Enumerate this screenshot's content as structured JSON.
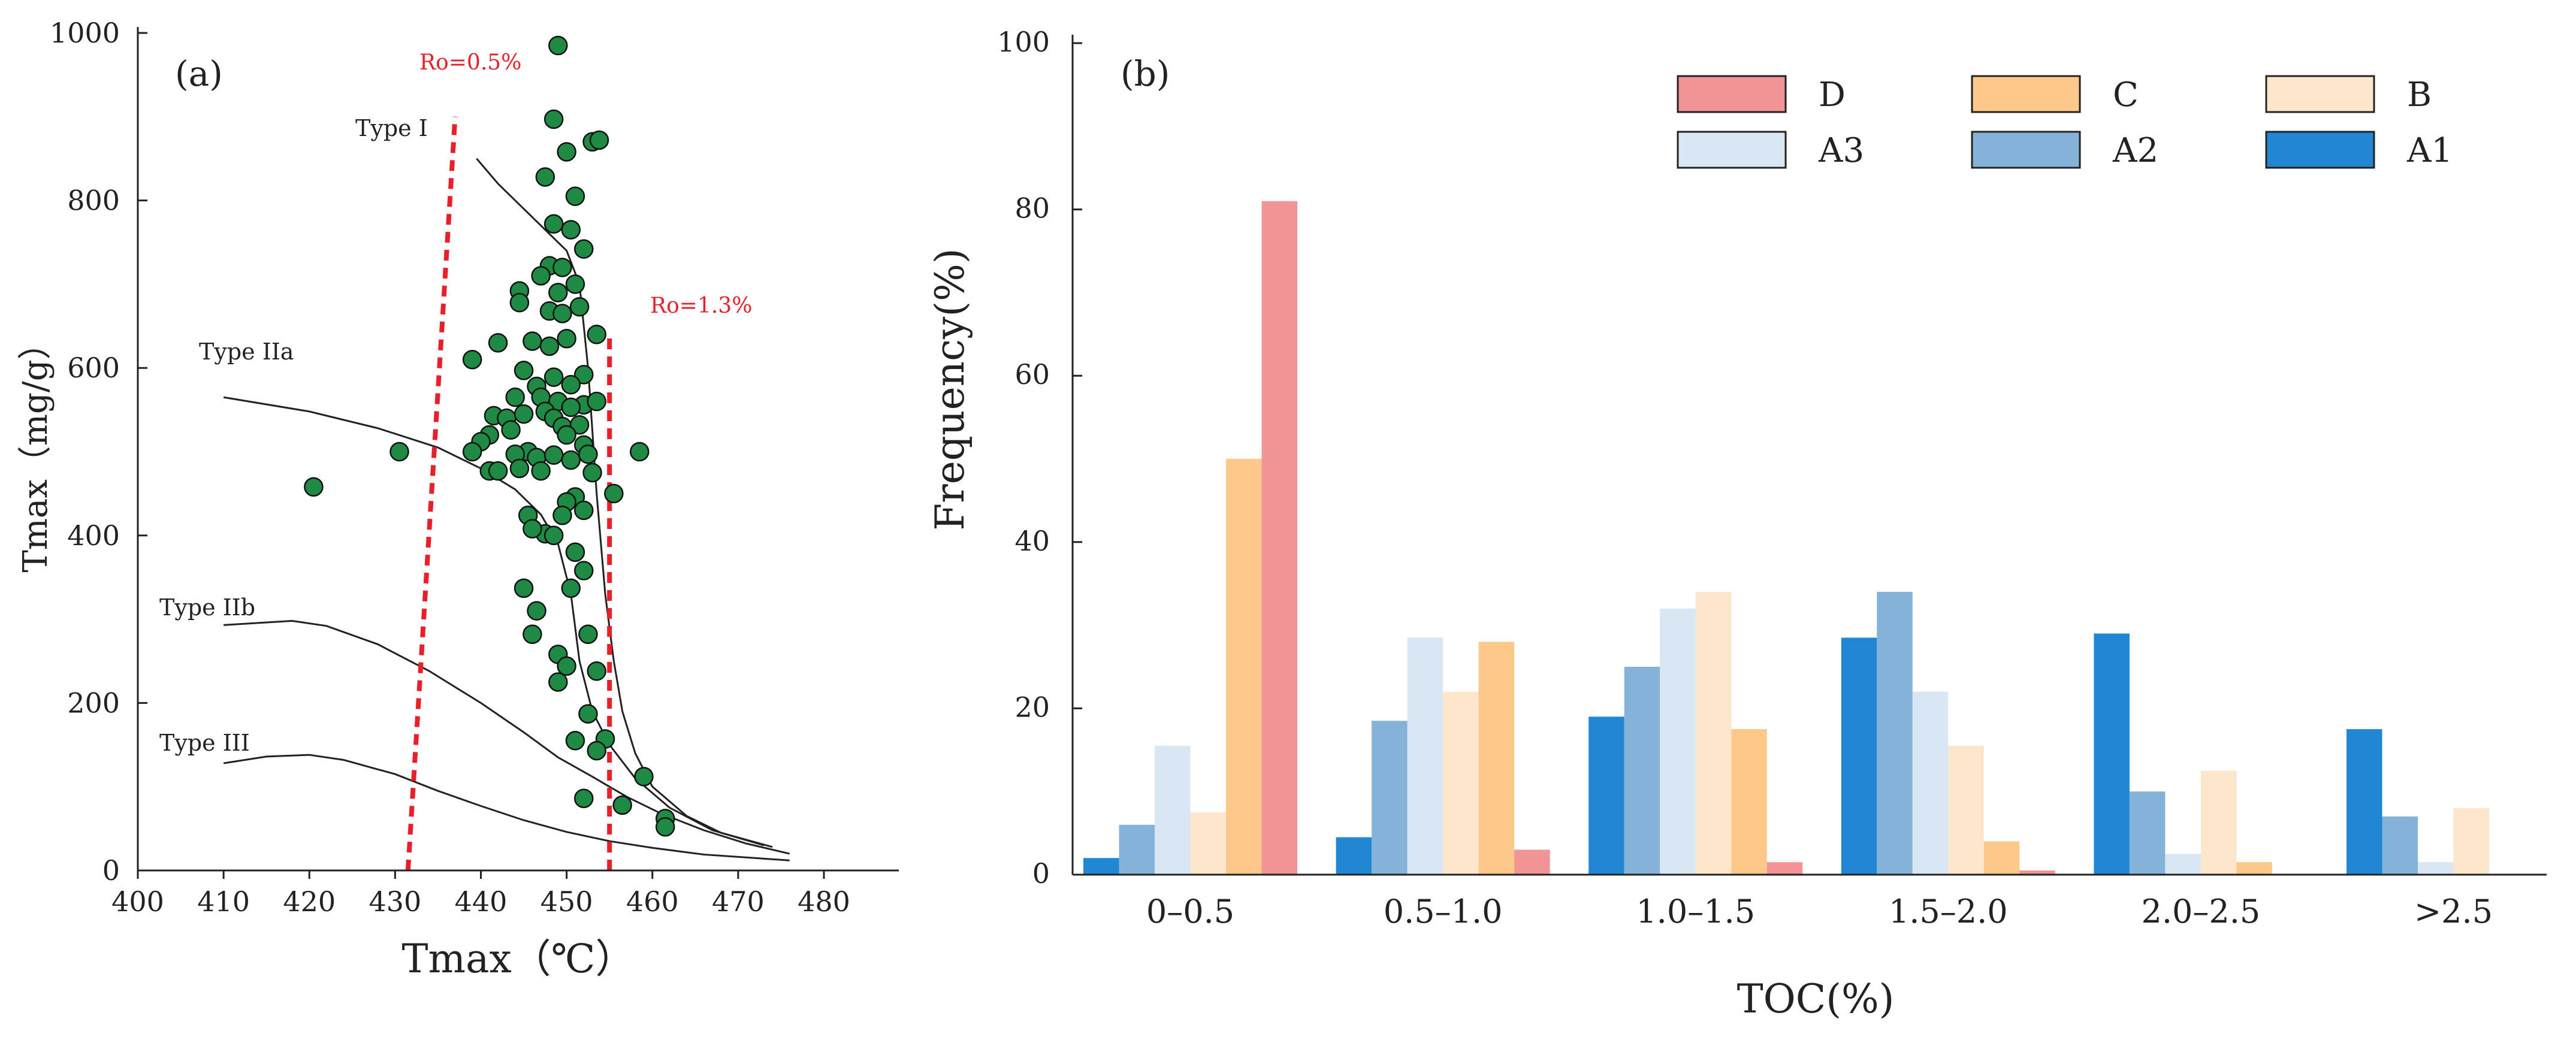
{
  "chart_data": [
    {
      "id": "a",
      "type": "scatter",
      "panel_label": "(a)",
      "xlabel": "Tmax（℃）",
      "ylabel": "Tmax（mg/g）",
      "xlim": [
        400,
        480
      ],
      "ylim": [
        0,
        1000
      ],
      "xticks": [
        400,
        410,
        420,
        430,
        440,
        450,
        460,
        470,
        480
      ],
      "yticks": [
        0,
        200,
        400,
        600,
        800,
        1000
      ],
      "marker_color": "#1e8a44",
      "reference_lines": [
        {
          "label": "Ro=0.5%",
          "color": "#e8202a",
          "points": [
            [
              431.5,
              0
            ],
            [
              437,
              900
            ]
          ]
        },
        {
          "label": "Ro=1.3%",
          "color": "#e8202a",
          "points": [
            [
              455,
              0
            ],
            [
              455,
              640
            ]
          ]
        }
      ],
      "curves": [
        {
          "label": "Type I",
          "points": [
            [
              439.5,
              850
            ],
            [
              442,
              820
            ],
            [
              445,
              790
            ],
            [
              448,
              760
            ],
            [
              450,
              740
            ],
            [
              451.5,
              700
            ],
            [
              452.5,
              600
            ],
            [
              453.5,
              450
            ],
            [
              454.5,
              330
            ],
            [
              455.5,
              250
            ],
            [
              456.5,
              190
            ],
            [
              458,
              140
            ],
            [
              460,
              100
            ],
            [
              464,
              65
            ],
            [
              468,
              45
            ],
            [
              474,
              28
            ]
          ]
        },
        {
          "label": "Type IIa",
          "points": [
            [
              410,
              565
            ],
            [
              420,
              548
            ],
            [
              428,
              528
            ],
            [
              435,
              505
            ],
            [
              440,
              480
            ],
            [
              444,
              455
            ],
            [
              447,
              425
            ],
            [
              449,
              390
            ],
            [
              450.5,
              330
            ],
            [
              451.5,
              250
            ],
            [
              453,
              190
            ],
            [
              455,
              150
            ],
            [
              458,
              110
            ],
            [
              462,
              75
            ],
            [
              467,
              48
            ],
            [
              473,
              30
            ]
          ]
        },
        {
          "label": "Type IIb",
          "points": [
            [
              410,
              293
            ],
            [
              418,
              298
            ],
            [
              422,
              292
            ],
            [
              428,
              270
            ],
            [
              434,
              238
            ],
            [
              440,
              200
            ],
            [
              445,
              165
            ],
            [
              449,
              135
            ],
            [
              453,
              112
            ],
            [
              457,
              88
            ],
            [
              461,
              68
            ],
            [
              466,
              48
            ],
            [
              471,
              32
            ],
            [
              476,
              20
            ]
          ]
        },
        {
          "label": "Type III",
          "points": [
            [
              410,
              128
            ],
            [
              415,
              136
            ],
            [
              420,
              138
            ],
            [
              424,
              132
            ],
            [
              430,
              115
            ],
            [
              435,
              95
            ],
            [
              440,
              77
            ],
            [
              445,
              60
            ],
            [
              450,
              46
            ],
            [
              455,
              35
            ],
            [
              460,
              27
            ],
            [
              466,
              19
            ],
            [
              476,
              12
            ]
          ]
        }
      ],
      "points": [
        [
          449,
          985
        ],
        [
          448.5,
          897
        ],
        [
          453,
          870
        ],
        [
          453.8,
          872
        ],
        [
          450,
          858
        ],
        [
          451,
          805
        ],
        [
          447.5,
          828
        ],
        [
          448.5,
          772
        ],
        [
          450.5,
          765
        ],
        [
          452,
          742
        ],
        [
          448,
          722
        ],
        [
          447,
          710
        ],
        [
          449.5,
          720
        ],
        [
          451,
          700
        ],
        [
          444.5,
          692
        ],
        [
          449,
          690
        ],
        [
          444.5,
          678
        ],
        [
          451.5,
          673
        ],
        [
          448,
          668
        ],
        [
          449.5,
          665
        ],
        [
          453.5,
          640
        ],
        [
          450,
          635
        ],
        [
          446,
          632
        ],
        [
          448,
          626
        ],
        [
          439,
          610
        ],
        [
          442,
          630
        ],
        [
          452,
          592
        ],
        [
          446.5,
          578
        ],
        [
          448.5,
          589
        ],
        [
          445,
          597
        ],
        [
          450.5,
          580
        ],
        [
          452,
          556
        ],
        [
          447,
          565
        ],
        [
          449,
          560
        ],
        [
          450.5,
          553
        ],
        [
          444,
          565
        ],
        [
          453.5,
          560
        ],
        [
          441.5,
          543
        ],
        [
          443,
          540
        ],
        [
          445,
          545
        ],
        [
          447.5,
          548
        ],
        [
          448.5,
          540
        ],
        [
          449.5,
          530
        ],
        [
          451.5,
          532
        ],
        [
          443.5,
          526
        ],
        [
          441,
          520
        ],
        [
          440,
          512
        ],
        [
          450,
          520
        ],
        [
          452,
          508
        ],
        [
          439,
          500
        ],
        [
          445.5,
          500
        ],
        [
          444,
          497
        ],
        [
          446.5,
          493
        ],
        [
          448.5,
          496
        ],
        [
          450.5,
          490
        ],
        [
          452.5,
          497
        ],
        [
          430.5,
          500
        ],
        [
          458.5,
          500
        ],
        [
          444.5,
          480
        ],
        [
          447,
          477
        ],
        [
          441,
          477
        ],
        [
          442,
          477
        ],
        [
          453,
          475
        ],
        [
          420.5,
          458
        ],
        [
          455.5,
          450
        ],
        [
          451,
          446
        ],
        [
          450,
          440
        ],
        [
          445.5,
          424
        ],
        [
          449.5,
          424
        ],
        [
          452,
          430
        ],
        [
          447.5,
          402
        ],
        [
          446,
          408
        ],
        [
          448.5,
          400
        ],
        [
          451,
          380
        ],
        [
          452,
          358
        ],
        [
          450.5,
          337
        ],
        [
          445,
          337
        ],
        [
          446.5,
          310
        ],
        [
          452.5,
          282
        ],
        [
          446,
          282
        ],
        [
          449,
          258
        ],
        [
          450,
          244
        ],
        [
          449,
          225
        ],
        [
          453.5,
          238
        ],
        [
          452.5,
          187
        ],
        [
          454.5,
          157
        ],
        [
          451,
          155
        ],
        [
          453.5,
          143
        ],
        [
          459,
          112
        ],
        [
          452,
          86
        ],
        [
          456.5,
          78
        ],
        [
          461.5,
          62
        ],
        [
          461.5,
          52
        ]
      ]
    },
    {
      "id": "b",
      "type": "bar",
      "panel_label": "(b)",
      "xlabel": "TOC(%)",
      "ylabel": "Frequency(%)",
      "ylim": [
        0,
        100
      ],
      "yticks": [
        0,
        20,
        40,
        60,
        80,
        100
      ],
      "categories": [
        "0–0.5",
        "0.5–1.0",
        "1.0–1.5",
        "1.5–2.0",
        "2.0–2.5",
        ">2.5"
      ],
      "legend": [
        "D",
        "C",
        "B",
        "A3",
        "A2",
        "A1"
      ],
      "series": [
        {
          "name": "A1",
          "color": "#2187d5",
          "values": [
            2,
            4.5,
            19,
            28.5,
            29,
            17.5
          ]
        },
        {
          "name": "A2",
          "color": "#85b2d8",
          "values": [
            6,
            18.5,
            25,
            34,
            10,
            7
          ]
        },
        {
          "name": "A3",
          "color": "#d9e6f3",
          "values": [
            15.5,
            28.5,
            32,
            22,
            2.5,
            1.5
          ]
        },
        {
          "name": "B",
          "color": "#fce7cd",
          "values": [
            7.5,
            22,
            34,
            15.5,
            12.5,
            8
          ]
        },
        {
          "name": "C",
          "color": "#fcc98b",
          "values": [
            50,
            28,
            17.5,
            4,
            1.5,
            0
          ]
        },
        {
          "name": "D",
          "color": "#f29495",
          "values": [
            81,
            3,
            1.5,
            0.5,
            0,
            0
          ]
        }
      ]
    }
  ]
}
